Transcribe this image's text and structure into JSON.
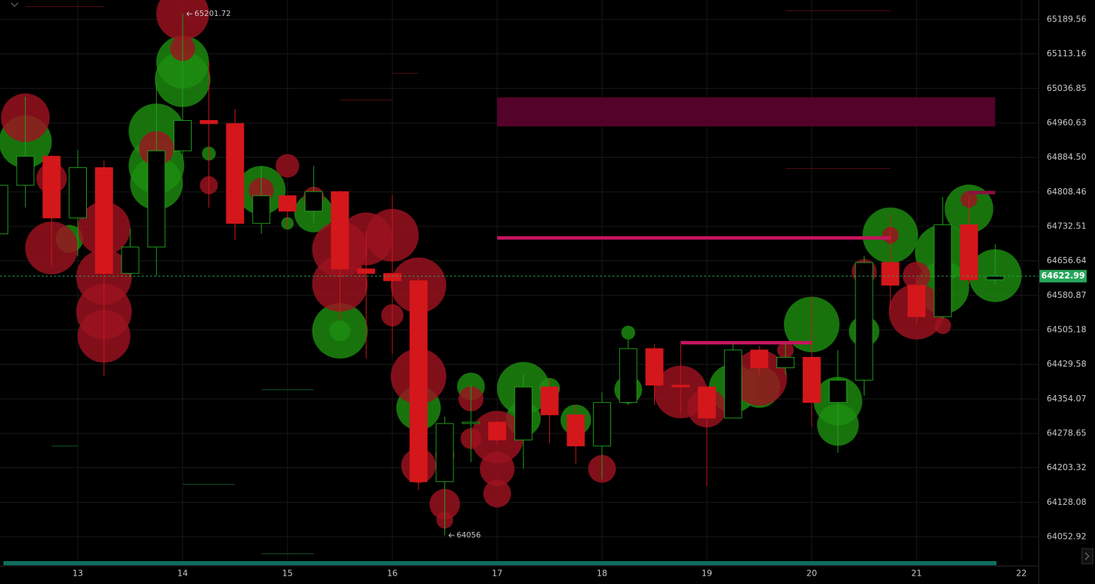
{
  "chart_data": {
    "type": "candlestick",
    "log_scale": true,
    "grid": true,
    "up_color": "#22a31a",
    "down_color": "#d4171b",
    "xlim": [
      12.258,
      22.159
    ],
    "xticks": [
      13,
      14,
      15,
      16,
      17,
      18,
      19,
      20,
      21,
      22
    ],
    "ylim": [
      64000,
      65232.6
    ],
    "yticks": [
      65189.56,
      65113.16,
      65036.85,
      64960.63,
      {
        "value": 64884.5,
        "label": "64884.50"
      },
      64808.46,
      64732.51,
      64656.64,
      64580.87,
      64505.18,
      64429.58,
      64354.07,
      64278.65,
      64203.32,
      64128.08,
      64052.92
    ],
    "candles": {
      "x": [
        12.25,
        12.5,
        12.75,
        13,
        13.25,
        13.5,
        13.75,
        14,
        14.25,
        14.5,
        14.75,
        15,
        15.25,
        15.5,
        15.75,
        16,
        16.25,
        16.5,
        16.75,
        17,
        17.25,
        17.5,
        17.75,
        18,
        18.25,
        18.5,
        18.75,
        19,
        19.25,
        19.5,
        19.75,
        20,
        20.25,
        20.5,
        20.75,
        21,
        21.25,
        21.5,
        21.75
      ],
      "open": [
        64716,
        64823,
        64887,
        64751,
        64862,
        64629,
        64687,
        64899,
        64966,
        64959,
        64739,
        64800,
        64766,
        64809,
        64639,
        64629,
        64613,
        64173,
        64300,
        64303,
        64264,
        64380,
        64319,
        64251,
        64346,
        64464,
        64384,
        64380,
        64312,
        64461,
        64422,
        64445,
        64346,
        64395,
        64653,
        64603,
        64534,
        64736,
        64615
      ],
      "high": [
        64832,
        65018,
        64889,
        64901,
        64878,
        64728,
        65049,
        65201.72,
        65095,
        64991,
        64866,
        64802,
        64866,
        64811,
        64720,
        64801,
        64624,
        64315,
        64384,
        64306,
        64407,
        64400,
        64341,
        64369,
        64484,
        64473,
        64473,
        64384,
        64476,
        64470,
        64476,
        64578,
        64461,
        64667,
        64759,
        64621,
        64797,
        64797,
        64693
      ],
      "low": [
        64713,
        64774,
        64644,
        64667,
        64403,
        64621,
        64624,
        64881,
        64774,
        64702,
        64716,
        64728,
        64740,
        64529,
        64442,
        64453,
        64155,
        64056,
        64216,
        64254,
        64201,
        64257,
        64212,
        64178,
        64341,
        64341,
        64323,
        64163,
        64312,
        64407,
        64407,
        64293,
        64236,
        64361,
        64552,
        64517,
        64529,
        64606,
        64606
      ],
      "close": [
        64823,
        64887,
        64751,
        64862,
        64629,
        64687,
        64899,
        64966,
        64959,
        64739,
        64800,
        64766,
        64809,
        64639,
        64629,
        64613,
        64173,
        64300,
        64303,
        64264,
        64380,
        64319,
        64251,
        64346,
        64464,
        64384,
        64380,
        64312,
        64461,
        64422,
        64445,
        64346,
        64395,
        64653,
        64603,
        64534,
        64736,
        64615,
        64622.99
      ]
    },
    "bubbles": [
      {
        "color": "#1d8c10",
        "x": [
          12.25,
          12.5,
          12.92,
          13.75,
          13.75,
          13.75,
          14.0,
          14.0,
          14.25,
          14.75,
          15.0,
          15.25,
          15.5,
          15.5,
          16.25,
          16.75,
          17.25,
          17.25,
          17.5,
          17.75,
          18.0,
          18.25,
          18.25,
          19.25,
          19.5,
          20.0,
          20.25,
          20.25,
          20.5,
          20.5,
          20.75,
          21.25,
          21.25,
          21.5,
          21.75
        ],
        "y": [
          64792,
          64919,
          64705,
          64942,
          64866,
          64827,
          65095,
          65057,
          64893,
          64812,
          64739,
          64762,
          64503,
          64503,
          64334,
          64381,
          64377,
          64311,
          64377,
          64308,
          64326,
          64499,
          64374,
          64377,
          64380,
          64517,
          64349,
          64297,
          64502,
          64552,
          64713,
          64598,
          64675,
          64771,
          64624
        ],
        "size": [
          12,
          38,
          20,
          40,
          40,
          38,
          38,
          40,
          10,
          35,
          9,
          28,
          40,
          15,
          32,
          20,
          38,
          25,
          15,
          22,
          10,
          10,
          20,
          35,
          30,
          40,
          35,
          30,
          22,
          12,
          40,
          38,
          40,
          35,
          38
        ]
      },
      {
        "color": "#9c1220",
        "x": [
          12.5,
          12.75,
          12.75,
          13.25,
          13.25,
          13.25,
          13.25,
          13.75,
          14.0,
          14.0,
          14.25,
          14.75,
          15.0,
          15.25,
          15.5,
          15.5,
          15.75,
          16.0,
          16.0,
          16.25,
          16.25,
          16.25,
          16.5,
          16.5,
          16.5,
          16.75,
          16.75,
          17.0,
          17.0,
          17.0,
          18.0,
          18.25,
          18.75,
          19.0,
          19.5,
          19.75,
          20.5,
          20.75,
          21.0,
          21.0,
          21.25,
          21.5
        ],
        "y": [
          64972,
          64838,
          64685,
          64728,
          64621,
          64545,
          64491,
          64904,
          65202,
          65125,
          64823,
          64812,
          64866,
          64797,
          64682,
          64606,
          64705,
          64713,
          64537,
          64603,
          64403,
          64208,
          64124,
          64089,
          64231,
          64354,
          64267,
          64270,
          64201,
          64147,
          64201,
          64422,
          64369,
          64334,
          64400,
          64461,
          64633,
          64713,
          64545,
          64624,
          64514,
          64792
        ],
        "size": [
          35,
          22,
          38,
          38,
          40,
          40,
          38,
          25,
          38,
          18,
          13,
          18,
          17,
          15,
          40,
          40,
          38,
          38,
          16,
          40,
          40,
          25,
          22,
          12,
          14,
          18,
          15,
          38,
          25,
          20,
          20,
          12,
          38,
          28,
          40,
          12,
          18,
          12,
          40,
          20,
          12,
          12
        ]
      }
    ],
    "zones": [
      {
        "x": [
          17,
          21.75
        ],
        "range": [
          64953,
          65017
        ],
        "color": "#55022a"
      }
    ],
    "levels": [
      {
        "x": [
          17,
          20.75
        ],
        "value": 64707,
        "color": "#c4155e"
      },
      {
        "x": [
          18.75,
          20.0
        ],
        "value": 64477,
        "color": "#c4155e"
      },
      {
        "x": [
          21.5,
          21.75
        ],
        "value": 64807,
        "color": "#8a1140"
      },
      {
        "x": [
          12.5,
          13.25
        ],
        "value": 65218,
        "color": "#5a0c12"
      },
      {
        "x": [
          19.75,
          20.75
        ],
        "value": 65209,
        "color": "#5a0c12"
      },
      {
        "x": [
          19.75,
          20.75
        ],
        "value": 64860,
        "color": "#5a0c12"
      },
      {
        "x": [
          16.0,
          16.25
        ],
        "value": 65070,
        "color": "#5a0c12"
      },
      {
        "x": [
          15.5,
          16.0
        ],
        "value": 65011,
        "color": "#5a0c12"
      },
      {
        "x": [
          14.75,
          15.25
        ],
        "value": 64374,
        "color": "#0e5a2a"
      },
      {
        "x": [
          12.75,
          13.0
        ],
        "value": 64251,
        "color": "#0e5a2a"
      },
      {
        "x": [
          14.0,
          14.5
        ],
        "value": 64167,
        "color": "#0e5a2a"
      },
      {
        "x": [
          14.75,
          15.25
        ],
        "value": 64016,
        "color": "#0e5a2a"
      }
    ],
    "annotations": [
      {
        "x": 14.0,
        "value": 65201.72
      },
      {
        "x": 16.5,
        "value": 64056
      }
    ],
    "last_price": 64622.99,
    "last_price_color": "#26a65b"
  }
}
